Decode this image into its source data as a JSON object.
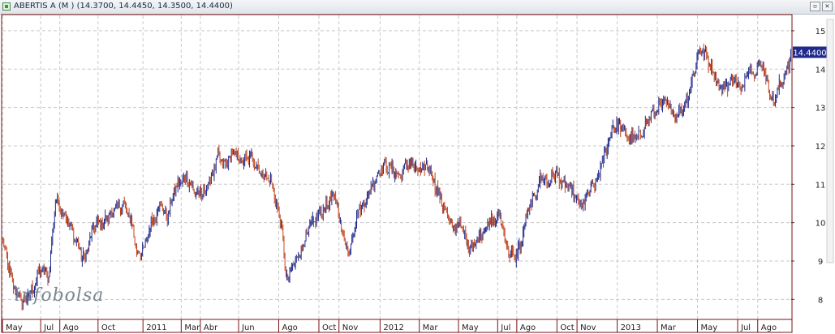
{
  "window": {
    "title": "ABERTIS A (M ) (14.3700, 14.4450, 14.3500, 14.4400)",
    "restore_glyph": "▫",
    "close_glyph": "✕"
  },
  "watermark": "infobolsa",
  "colors": {
    "up": "#1f2a8c",
    "down": "#c0441c",
    "grid": "#c8c8c8",
    "border": "#7a1010",
    "last_badge_bg": "#1f2a8c"
  },
  "chart_data": {
    "type": "line",
    "style": "bar-ohlc",
    "title": "ABERTIS A (M )",
    "ylim": [
      7.5,
      15.4
    ],
    "yticks": [
      8,
      9,
      10,
      11,
      12,
      13,
      14,
      15
    ],
    "grid": true,
    "last_value": "14.4400",
    "x_labels": [
      {
        "label": "May",
        "i": 0
      },
      {
        "label": "Jul",
        "i": 40
      },
      {
        "label": "Ago",
        "i": 60
      },
      {
        "label": "Oct",
        "i": 100
      },
      {
        "label": "2011",
        "i": 147
      },
      {
        "label": "Mar",
        "i": 187
      },
      {
        "label": "Abr",
        "i": 207
      },
      {
        "label": "Jun",
        "i": 247
      },
      {
        "label": "Ago",
        "i": 289
      },
      {
        "label": "Oct",
        "i": 331
      },
      {
        "label": "Nov",
        "i": 352
      },
      {
        "label": "2012",
        "i": 395
      },
      {
        "label": "Mar",
        "i": 436
      },
      {
        "label": "May",
        "i": 477
      },
      {
        "label": "Jul",
        "i": 518
      },
      {
        "label": "Ago",
        "i": 538
      },
      {
        "label": "Oct",
        "i": 580
      },
      {
        "label": "Nov",
        "i": 601
      },
      {
        "label": "2013",
        "i": 643
      },
      {
        "label": "Mar",
        "i": 685
      },
      {
        "label": "May",
        "i": 727
      },
      {
        "label": "Jul",
        "i": 769
      },
      {
        "label": "Ago",
        "i": 790
      }
    ],
    "n_bars": 825,
    "anchors": [
      [
        0,
        9.5
      ],
      [
        10,
        8.4
      ],
      [
        20,
        7.9
      ],
      [
        30,
        8.2
      ],
      [
        40,
        8.8
      ],
      [
        48,
        8.6
      ],
      [
        55,
        10.6
      ],
      [
        65,
        10.2
      ],
      [
        75,
        9.6
      ],
      [
        85,
        9.0
      ],
      [
        95,
        9.9
      ],
      [
        105,
        10.0
      ],
      [
        115,
        10.3
      ],
      [
        125,
        10.5
      ],
      [
        135,
        10.0
      ],
      [
        140,
        9.2
      ],
      [
        148,
        9.3
      ],
      [
        155,
        10.0
      ],
      [
        165,
        10.5
      ],
      [
        172,
        10.1
      ],
      [
        180,
        10.9
      ],
      [
        192,
        11.2
      ],
      [
        200,
        10.8
      ],
      [
        208,
        10.7
      ],
      [
        215,
        11.0
      ],
      [
        225,
        11.7
      ],
      [
        232,
        11.5
      ],
      [
        240,
        11.8
      ],
      [
        250,
        11.6
      ],
      [
        260,
        11.7
      ],
      [
        270,
        11.3
      ],
      [
        280,
        11.1
      ],
      [
        286,
        10.5
      ],
      [
        292,
        9.8
      ],
      [
        296,
        8.5
      ],
      [
        302,
        8.8
      ],
      [
        310,
        9.2
      ],
      [
        320,
        9.8
      ],
      [
        330,
        10.2
      ],
      [
        340,
        10.5
      ],
      [
        348,
        10.7
      ],
      [
        355,
        9.7
      ],
      [
        362,
        9.2
      ],
      [
        370,
        10.2
      ],
      [
        380,
        10.6
      ],
      [
        390,
        11.2
      ],
      [
        398,
        11.5
      ],
      [
        406,
        11.4
      ],
      [
        415,
        11.2
      ],
      [
        425,
        11.6
      ],
      [
        435,
        11.3
      ],
      [
        445,
        11.5
      ],
      [
        455,
        10.8
      ],
      [
        465,
        10.2
      ],
      [
        470,
        9.8
      ],
      [
        478,
        10.0
      ],
      [
        487,
        9.4
      ],
      [
        495,
        9.5
      ],
      [
        505,
        9.9
      ],
      [
        512,
        10.0
      ],
      [
        520,
        10.2
      ],
      [
        528,
        9.3
      ],
      [
        535,
        9.1
      ],
      [
        542,
        9.4
      ],
      [
        548,
        10.2
      ],
      [
        555,
        10.6
      ],
      [
        563,
        11.2
      ],
      [
        570,
        11.0
      ],
      [
        578,
        11.3
      ],
      [
        585,
        11.0
      ],
      [
        592,
        10.9
      ],
      [
        600,
        10.6
      ],
      [
        606,
        10.4
      ],
      [
        612,
        10.8
      ],
      [
        620,
        11.0
      ],
      [
        630,
        11.8
      ],
      [
        638,
        12.5
      ],
      [
        646,
        12.5
      ],
      [
        655,
        12.2
      ],
      [
        665,
        12.2
      ],
      [
        675,
        12.7
      ],
      [
        685,
        13.0
      ],
      [
        695,
        13.1
      ],
      [
        703,
        12.8
      ],
      [
        712,
        13.0
      ],
      [
        720,
        13.6
      ],
      [
        728,
        14.5
      ],
      [
        735,
        14.4
      ],
      [
        742,
        14.0
      ],
      [
        750,
        13.5
      ],
      [
        758,
        13.6
      ],
      [
        765,
        13.8
      ],
      [
        772,
        13.4
      ],
      [
        780,
        14.1
      ],
      [
        787,
        13.9
      ],
      [
        794,
        14.2
      ],
      [
        800,
        13.6
      ],
      [
        806,
        13.1
      ],
      [
        813,
        13.6
      ],
      [
        820,
        14.0
      ],
      [
        825,
        14.44
      ]
    ]
  }
}
